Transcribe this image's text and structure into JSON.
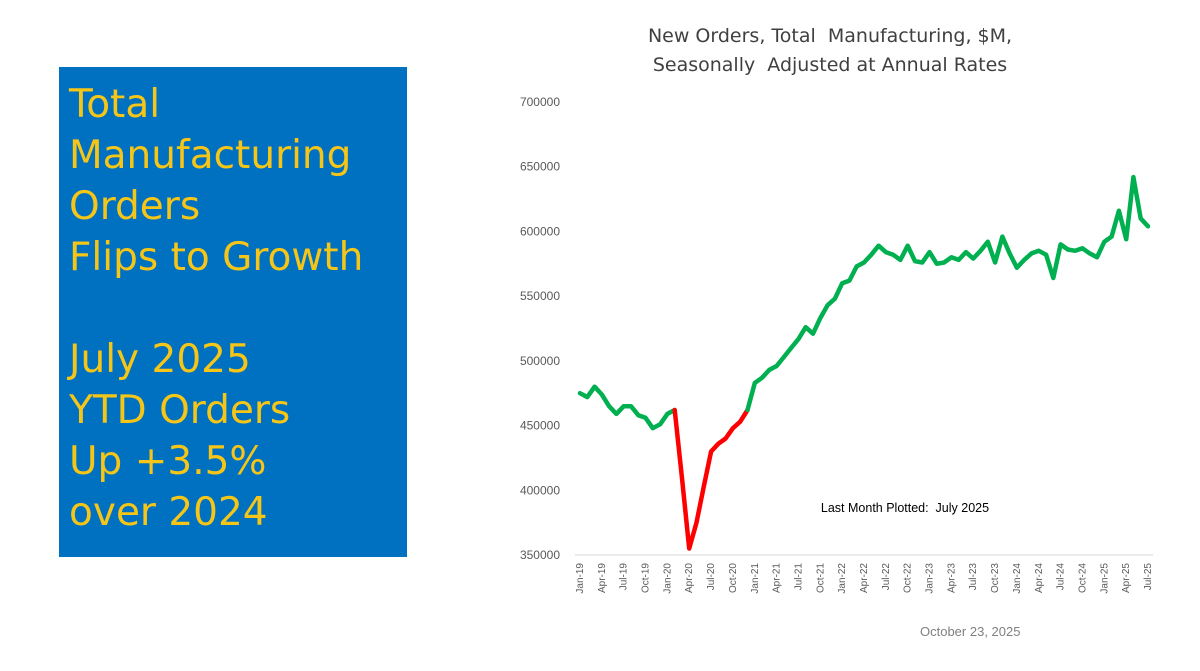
{
  "panel": {
    "color": "#0070C0",
    "text_color": "#F5C518",
    "headline_lines": [
      "Total",
      "Manufacturing",
      "Orders",
      "Flips to Growth"
    ],
    "detail_lines": [
      "July 2025",
      "YTD Orders",
      "Up +3.5%",
      "over 2024"
    ]
  },
  "footer_date": "October 23, 2025",
  "chart_data": {
    "type": "line",
    "title_lines": [
      "New Orders, Total  Manufacturing, $M,",
      "Seasonally  Adjusted at Annual Rates"
    ],
    "ylim": [
      350000,
      700000
    ],
    "yticks": [
      "350000",
      "400000",
      "450000",
      "500000",
      "550000",
      "600000",
      "650000",
      "700000"
    ],
    "xtick_labels": [
      "Jan-19",
      "Apr-19",
      "Jul-19",
      "Oct-19",
      "Jan-20",
      "Apr-20",
      "Jul-20",
      "Oct-20",
      "Jan-21",
      "Apr-21",
      "Jul-21",
      "Oct-21",
      "Jan-22",
      "Apr-22",
      "Jul-22",
      "Oct-22",
      "Jan-23",
      "Apr-23",
      "Jul-23",
      "Oct-23",
      "Jan-24",
      "Apr-24",
      "Jul-24",
      "Oct-24",
      "Jan-25",
      "Apr-25",
      "Jul-25"
    ],
    "annotation": "Last Month Plotted:  July 2025",
    "colors": {
      "growth": "#00B050",
      "decline": "#FF0000"
    },
    "series": [
      {
        "segments": [
          {
            "start": "Jan-19",
            "color_key": "growth"
          },
          {
            "start": "Feb-20",
            "color_key": "decline"
          },
          {
            "start": "Dec-20",
            "color_key": "growth"
          }
        ],
        "points": [
          [
            "Jan-19",
            475000
          ],
          [
            "Feb-19",
            472000
          ],
          [
            "Mar-19",
            480000
          ],
          [
            "Apr-19",
            474000
          ],
          [
            "May-19",
            465000
          ],
          [
            "Jun-19",
            459000
          ],
          [
            "Jul-19",
            465000
          ],
          [
            "Aug-19",
            465000
          ],
          [
            "Sep-19",
            458000
          ],
          [
            "Oct-19",
            456000
          ],
          [
            "Nov-19",
            448000
          ],
          [
            "Dec-19",
            451000
          ],
          [
            "Jan-20",
            459000
          ],
          [
            "Feb-20",
            462000
          ],
          [
            "Mar-20",
            410000
          ],
          [
            "Apr-20",
            355000
          ],
          [
            "May-20",
            375000
          ],
          [
            "Jun-20",
            403000
          ],
          [
            "Jul-20",
            430000
          ],
          [
            "Aug-20",
            436000
          ],
          [
            "Sep-20",
            440000
          ],
          [
            "Oct-20",
            448000
          ],
          [
            "Nov-20",
            453000
          ],
          [
            "Dec-20",
            462000
          ],
          [
            "Jan-21",
            483000
          ],
          [
            "Feb-21",
            487000
          ],
          [
            "Mar-21",
            493000
          ],
          [
            "Apr-21",
            496000
          ],
          [
            "May-21",
            503000
          ],
          [
            "Jun-21",
            510000
          ],
          [
            "Jul-21",
            517000
          ],
          [
            "Aug-21",
            526000
          ],
          [
            "Sep-21",
            521000
          ],
          [
            "Oct-21",
            533000
          ],
          [
            "Nov-21",
            543000
          ],
          [
            "Dec-21",
            548000
          ],
          [
            "Jan-22",
            560000
          ],
          [
            "Feb-22",
            562000
          ],
          [
            "Mar-22",
            573000
          ],
          [
            "Apr-22",
            576000
          ],
          [
            "May-22",
            582000
          ],
          [
            "Jun-22",
            589000
          ],
          [
            "Jul-22",
            584000
          ],
          [
            "Aug-22",
            582000
          ],
          [
            "Sep-22",
            578000
          ],
          [
            "Oct-22",
            589000
          ],
          [
            "Nov-22",
            577000
          ],
          [
            "Dec-22",
            576000
          ],
          [
            "Jan-23",
            584000
          ],
          [
            "Feb-23",
            575000
          ],
          [
            "Mar-23",
            576000
          ],
          [
            "Apr-23",
            580000
          ],
          [
            "May-23",
            578000
          ],
          [
            "Jun-23",
            584000
          ],
          [
            "Jul-23",
            579000
          ],
          [
            "Aug-23",
            585000
          ],
          [
            "Sep-23",
            592000
          ],
          [
            "Oct-23",
            576000
          ],
          [
            "Nov-23",
            596000
          ],
          [
            "Dec-23",
            583000
          ],
          [
            "Jan-24",
            572000
          ],
          [
            "Feb-24",
            578000
          ],
          [
            "Mar-24",
            583000
          ],
          [
            "Apr-24",
            585000
          ],
          [
            "May-24",
            582000
          ],
          [
            "Jun-24",
            564000
          ],
          [
            "Jul-24",
            590000
          ],
          [
            "Aug-24",
            586000
          ],
          [
            "Sep-24",
            585000
          ],
          [
            "Oct-24",
            587000
          ],
          [
            "Nov-24",
            583000
          ],
          [
            "Dec-24",
            580000
          ],
          [
            "Jan-25",
            592000
          ],
          [
            "Feb-25",
            596000
          ],
          [
            "Mar-25",
            616000
          ],
          [
            "Apr-25",
            594000
          ],
          [
            "May-25",
            642000
          ],
          [
            "Jun-25",
            610000
          ],
          [
            "Jul-25",
            604000
          ]
        ]
      }
    ]
  }
}
